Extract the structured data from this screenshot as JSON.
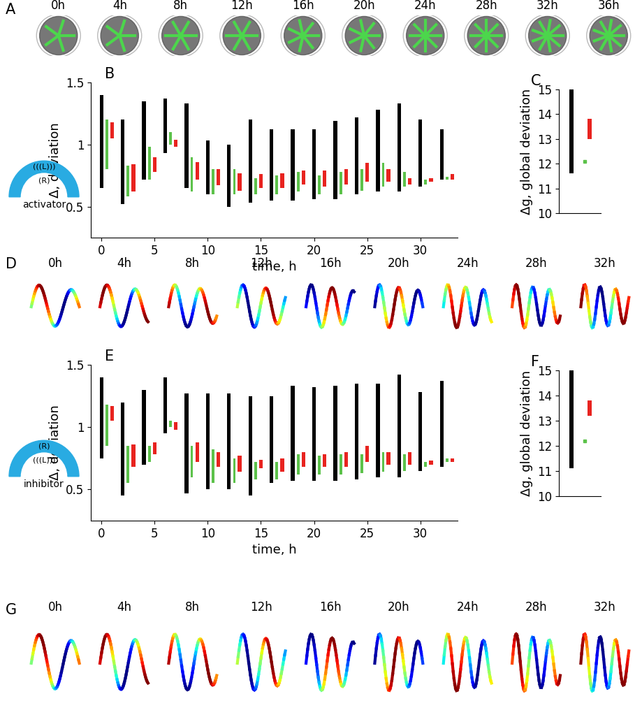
{
  "chart_data": [
    {
      "type": "range",
      "panel": "B",
      "ylabel": "Δ, deviation",
      "xlabel": "time, h",
      "xlim": [
        -1,
        33.5
      ],
      "ylim": [
        0.25,
        1.5
      ],
      "xticks": [
        0,
        5,
        10,
        15,
        20,
        25,
        30
      ],
      "yticks": [
        0.5,
        1,
        1.5
      ],
      "series": [
        {
          "color": "#000000",
          "x": [
            0,
            2,
            4,
            6,
            8,
            10,
            12,
            14,
            16,
            18,
            20,
            22,
            24,
            26,
            28,
            30,
            32
          ],
          "low": [
            0.65,
            0.52,
            0.72,
            0.93,
            0.65,
            0.6,
            0.5,
            0.53,
            0.55,
            0.55,
            0.56,
            0.56,
            0.6,
            0.62,
            0.62,
            0.66,
            0.72
          ],
          "high": [
            1.4,
            1.2,
            1.35,
            1.37,
            1.33,
            1.03,
            1.0,
            1.2,
            1.12,
            1.12,
            1.12,
            1.19,
            1.22,
            1.28,
            1.33,
            1.2,
            1.12
          ]
        },
        {
          "color": "#5cc24a",
          "x": [
            0.5,
            2.5,
            4.5,
            6.5,
            8.5,
            10.5,
            12.5,
            14.5,
            16.5,
            18.5,
            20.5,
            22.5,
            24.5,
            26.5,
            28.5,
            30.5,
            32.5
          ],
          "low": [
            0.8,
            0.58,
            0.72,
            1.0,
            0.62,
            0.6,
            0.6,
            0.6,
            0.6,
            0.62,
            0.6,
            0.6,
            0.63,
            0.66,
            0.66,
            0.68,
            0.72
          ],
          "high": [
            1.2,
            0.83,
            0.98,
            1.1,
            0.9,
            0.8,
            0.8,
            0.73,
            0.75,
            0.78,
            0.75,
            0.78,
            0.8,
            0.85,
            0.78,
            0.72,
            0.74
          ]
        },
        {
          "color": "#e8231f",
          "x": [
            1,
            3,
            5,
            7,
            9,
            11,
            13,
            15,
            17,
            19,
            21,
            23,
            25,
            27,
            29,
            31,
            33
          ],
          "low": [
            1.05,
            0.62,
            0.78,
            0.98,
            0.72,
            0.67,
            0.63,
            0.65,
            0.65,
            0.68,
            0.66,
            0.68,
            0.7,
            0.7,
            0.68,
            0.7,
            0.72
          ],
          "high": [
            1.18,
            0.84,
            0.9,
            1.04,
            0.86,
            0.8,
            0.77,
            0.76,
            0.77,
            0.79,
            0.79,
            0.8,
            0.85,
            0.8,
            0.73,
            0.73,
            0.76
          ]
        }
      ]
    },
    {
      "type": "range",
      "panel": "C",
      "ylabel": "Δg, global deviation",
      "tick_labels": "y",
      "xlim": [
        -0.5,
        1.2
      ],
      "ylim": [
        10,
        15
      ],
      "yticks": [
        10,
        11,
        12,
        13,
        14,
        15
      ],
      "series": [
        {
          "color": "#000000",
          "x": [
            0
          ],
          "low": [
            11.6
          ],
          "high": [
            15
          ]
        },
        {
          "color": "#5cc24a",
          "x": [
            0.55
          ],
          "low": [
            12.1
          ],
          "high": [
            12.1
          ]
        },
        {
          "color": "#e8231f",
          "x": [
            0.75
          ],
          "low": [
            13.0
          ],
          "high": [
            13.8
          ]
        }
      ]
    },
    {
      "type": "range",
      "panel": "E",
      "ylabel": "Δ, deviation",
      "xlabel": "time, h",
      "xlim": [
        -1,
        33.5
      ],
      "ylim": [
        0.25,
        1.5
      ],
      "xticks": [
        0,
        5,
        10,
        15,
        20,
        25,
        30
      ],
      "yticks": [
        0.5,
        1,
        1.5
      ],
      "series": [
        {
          "color": "#000000",
          "x": [
            0,
            2,
            4,
            6,
            8,
            10,
            12,
            14,
            16,
            18,
            20,
            22,
            24,
            26,
            28,
            30,
            32
          ],
          "low": [
            0.75,
            0.45,
            0.7,
            0.95,
            0.47,
            0.5,
            0.5,
            0.45,
            0.55,
            0.57,
            0.57,
            0.57,
            0.58,
            0.6,
            0.6,
            0.65,
            0.68
          ],
          "high": [
            1.4,
            1.2,
            1.3,
            1.4,
            1.27,
            1.27,
            1.27,
            1.25,
            1.25,
            1.33,
            1.32,
            1.33,
            1.35,
            1.35,
            1.42,
            1.28,
            1.37
          ]
        },
        {
          "color": "#5cc24a",
          "x": [
            0.5,
            2.5,
            4.5,
            6.5,
            8.5,
            10.5,
            12.5,
            14.5,
            16.5,
            18.5,
            20.5,
            22.5,
            24.5,
            26.5,
            28.5,
            30.5,
            32.5
          ],
          "low": [
            0.85,
            0.55,
            0.72,
            1.0,
            0.6,
            0.55,
            0.55,
            0.58,
            0.58,
            0.62,
            0.62,
            0.62,
            0.63,
            0.64,
            0.65,
            0.68,
            0.72
          ],
          "high": [
            1.18,
            0.85,
            0.85,
            1.05,
            0.85,
            0.82,
            0.75,
            0.72,
            0.72,
            0.78,
            0.77,
            0.78,
            0.78,
            0.8,
            0.78,
            0.72,
            0.75
          ]
        },
        {
          "color": "#e8231f",
          "x": [
            1,
            3,
            5,
            7,
            9,
            11,
            13,
            15,
            17,
            19,
            21,
            23,
            25,
            27,
            29,
            31,
            33
          ],
          "low": [
            1.05,
            0.68,
            0.78,
            0.98,
            0.72,
            0.68,
            0.64,
            0.67,
            0.64,
            0.68,
            0.68,
            0.68,
            0.72,
            0.7,
            0.7,
            0.7,
            0.72
          ],
          "high": [
            1.17,
            0.86,
            0.88,
            1.04,
            0.88,
            0.8,
            0.77,
            0.74,
            0.75,
            0.8,
            0.78,
            0.8,
            0.85,
            0.8,
            0.8,
            0.73,
            0.75
          ]
        }
      ]
    },
    {
      "type": "range",
      "panel": "F",
      "ylabel": "Δg, global deviation",
      "tick_labels": "y",
      "xlim": [
        -0.5,
        1.2
      ],
      "ylim": [
        10,
        15
      ],
      "yticks": [
        10,
        11,
        12,
        13,
        14,
        15
      ],
      "series": [
        {
          "color": "#000000",
          "x": [
            0
          ],
          "low": [
            11.1
          ],
          "high": [
            15
          ]
        },
        {
          "color": "#5cc24a",
          "x": [
            0.55
          ],
          "low": [
            12.2
          ],
          "high": [
            12.2
          ]
        },
        {
          "color": "#e8231f",
          "x": [
            0.75
          ],
          "low": [
            13.2
          ],
          "high": [
            13.8
          ]
        }
      ]
    }
  ],
  "image_strips": [
    {
      "panel": "A",
      "kind": "photo",
      "times": [
        "0h",
        "4h",
        "8h",
        "12h",
        "16h",
        "20h",
        "24h",
        "28h",
        "32h",
        "36h"
      ]
    },
    {
      "panel": "D",
      "kind": "contour",
      "times": [
        "0h",
        "4h",
        "8h",
        "12h",
        "16h",
        "20h",
        "24h",
        "28h",
        "32h"
      ]
    },
    {
      "panel": "G",
      "kind": "contour",
      "times": [
        "0h",
        "4h",
        "8h",
        "12h",
        "16h",
        "20h",
        "24h",
        "28h",
        "32h"
      ]
    }
  ],
  "schematics": [
    {
      "next_to": "B",
      "outer": "(((L)))",
      "inner": "(R)",
      "label": "activator"
    },
    {
      "next_to": "E",
      "outer": "(R)",
      "inner": "(((L)))",
      "label": "inhibitor"
    }
  ]
}
